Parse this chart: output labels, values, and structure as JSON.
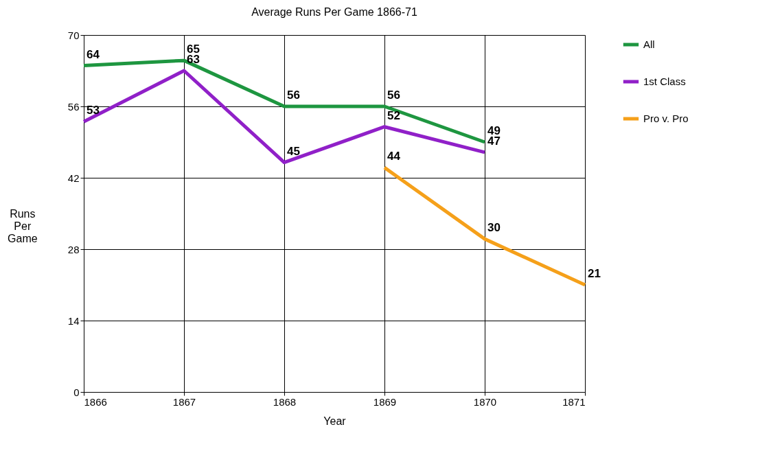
{
  "chart_data": {
    "type": "line",
    "title": "Average Runs Per Game 1866-71",
    "xlabel": "Year",
    "ylabel": "Runs Per Game",
    "xlim": [
      1866,
      1871
    ],
    "xticks": [
      1866,
      1867,
      1868,
      1869,
      1870,
      1871
    ],
    "ylim": [
      0,
      70
    ],
    "yticks": [
      0,
      14,
      28,
      42,
      56,
      70
    ],
    "grid": true,
    "legend": "right",
    "data_labels": true,
    "marker": "none",
    "line_style": "solid",
    "series": [
      {
        "name": "All",
        "color": "#1e9640",
        "x": [
          1866,
          1867,
          1868,
          1869,
          1870
        ],
        "values": [
          64,
          65,
          56,
          56,
          49
        ]
      },
      {
        "name": "1st Class",
        "color": "#9020c8",
        "x": [
          1866,
          1867,
          1868,
          1869,
          1870
        ],
        "values": [
          53,
          63,
          45,
          52,
          47
        ]
      },
      {
        "name": "Pro v. Pro",
        "color": "#f5a01a",
        "x": [
          1869,
          1870,
          1871
        ],
        "values": [
          44,
          30,
          21
        ]
      }
    ]
  }
}
